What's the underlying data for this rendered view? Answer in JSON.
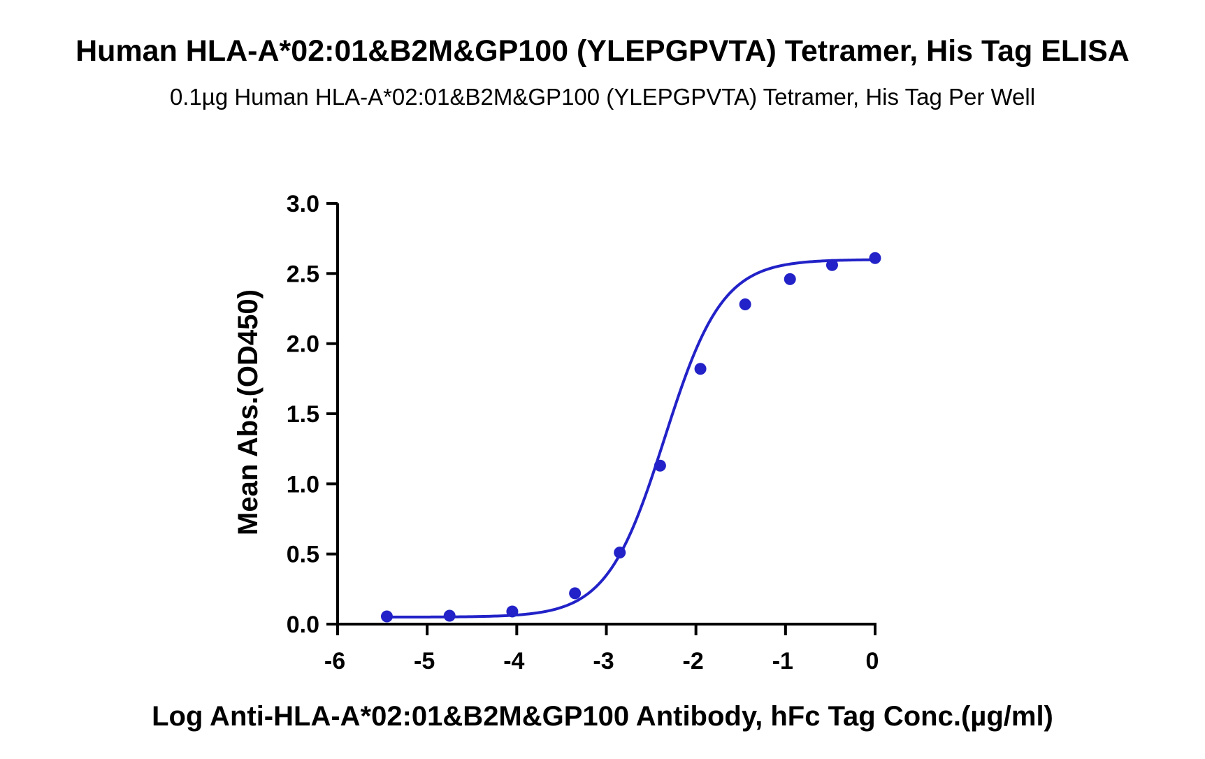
{
  "chart_data": {
    "type": "scatter",
    "title": "Human HLA-A*02:01&B2M&GP100 (YLEPGPVTA) Tetramer, His Tag ELISA",
    "subtitle": "0.1µg Human HLA-A*02:01&B2M&GP100 (YLEPGPVTA) Tetramer, His Tag Per Well",
    "xlabel": "Log Anti-HLA-A*02:01&B2M&GP100 Antibody, hFc Tag Conc.(µg/ml)",
    "ylabel": "Mean Abs.(OD450)",
    "xlim": [
      -6,
      0
    ],
    "ylim": [
      0,
      3.0
    ],
    "x_ticks": [
      "-6",
      "-5",
      "-4",
      "-3",
      "-2",
      "-1",
      "0"
    ],
    "y_ticks": [
      "0.0",
      "0.5",
      "1.0",
      "1.5",
      "2.0",
      "2.5",
      "3.0"
    ],
    "grid": false,
    "series": [
      {
        "color": "#2222c8",
        "x": [
          -5.45,
          -4.75,
          -4.05,
          -3.35,
          -2.85,
          -2.4,
          -1.95,
          -1.45,
          -0.95,
          -0.48,
          0
        ],
        "y": [
          0.055,
          0.06,
          0.09,
          0.22,
          0.51,
          1.13,
          1.82,
          2.28,
          2.46,
          2.56,
          2.61
        ],
        "fit": "four-parameter logistic"
      }
    ]
  }
}
